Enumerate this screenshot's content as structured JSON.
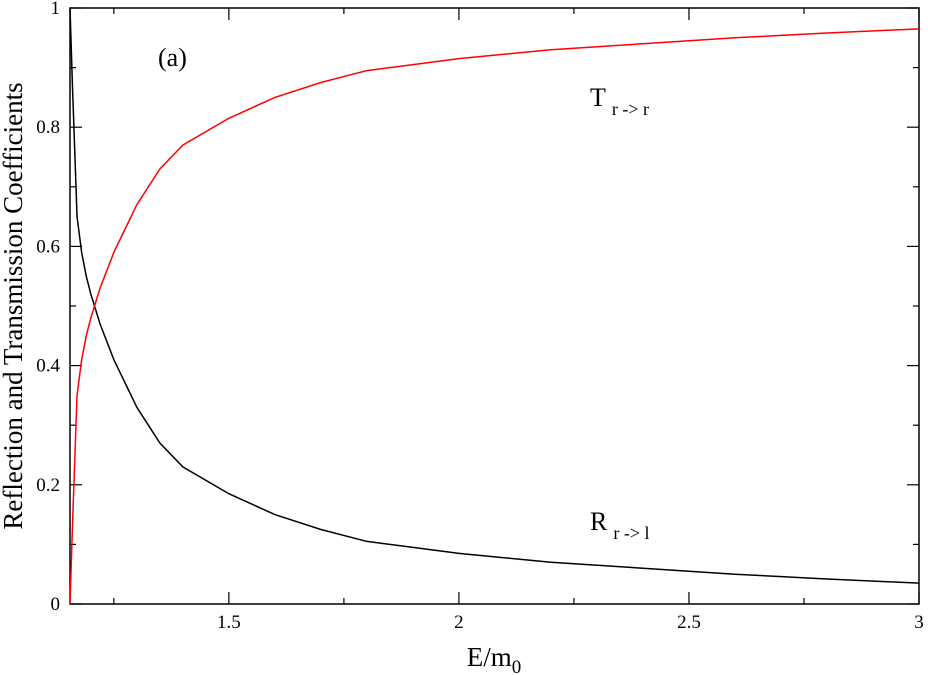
{
  "chart_data": {
    "type": "line",
    "xlabel": {
      "text": "E/m",
      "sub": "0"
    },
    "ylabel": "Reflection and Transmission Coefficients",
    "annotations": [
      {
        "text": "(a)"
      },
      {
        "text": "T",
        "sub": "r -> r"
      },
      {
        "text": "R",
        "sub": "r -> l"
      }
    ],
    "x": [
      1.1547,
      1.16,
      1.17,
      1.18,
      1.19,
      1.2,
      1.22,
      1.25,
      1.3,
      1.35,
      1.4,
      1.5,
      1.6,
      1.7,
      1.8,
      1.9,
      2.0,
      2.2,
      2.4,
      2.6,
      2.8,
      3.0
    ],
    "series": [
      {
        "color": "#000000",
        "values": [
          1.0,
          0.87,
          0.65,
          0.59,
          0.55,
          0.52,
          0.47,
          0.41,
          0.33,
          0.27,
          0.23,
          0.185,
          0.15,
          0.125,
          0.105,
          0.095,
          0.085,
          0.07,
          0.06,
          0.05,
          0.042,
          0.035
        ]
      },
      {
        "color": "#ff0000",
        "values": [
          0,
          0.13,
          0.35,
          0.41,
          0.45,
          0.48,
          0.53,
          0.59,
          0.67,
          0.73,
          0.77,
          0.815,
          0.85,
          0.875,
          0.895,
          0.905,
          0.915,
          0.93,
          0.94,
          0.95,
          0.958,
          0.965
        ]
      }
    ],
    "xlim": [
      1.1547,
      3
    ],
    "ylim": [
      0,
      1
    ],
    "xticks": [
      1.5,
      2,
      2.5,
      3
    ],
    "xminor": [
      1.25,
      1.75,
      2.25,
      2.75
    ],
    "yticks": [
      0,
      0.2,
      0.4,
      0.6,
      0.8,
      1
    ],
    "yminor": [
      0.1,
      0.3,
      0.5,
      0.7,
      0.9
    ]
  }
}
